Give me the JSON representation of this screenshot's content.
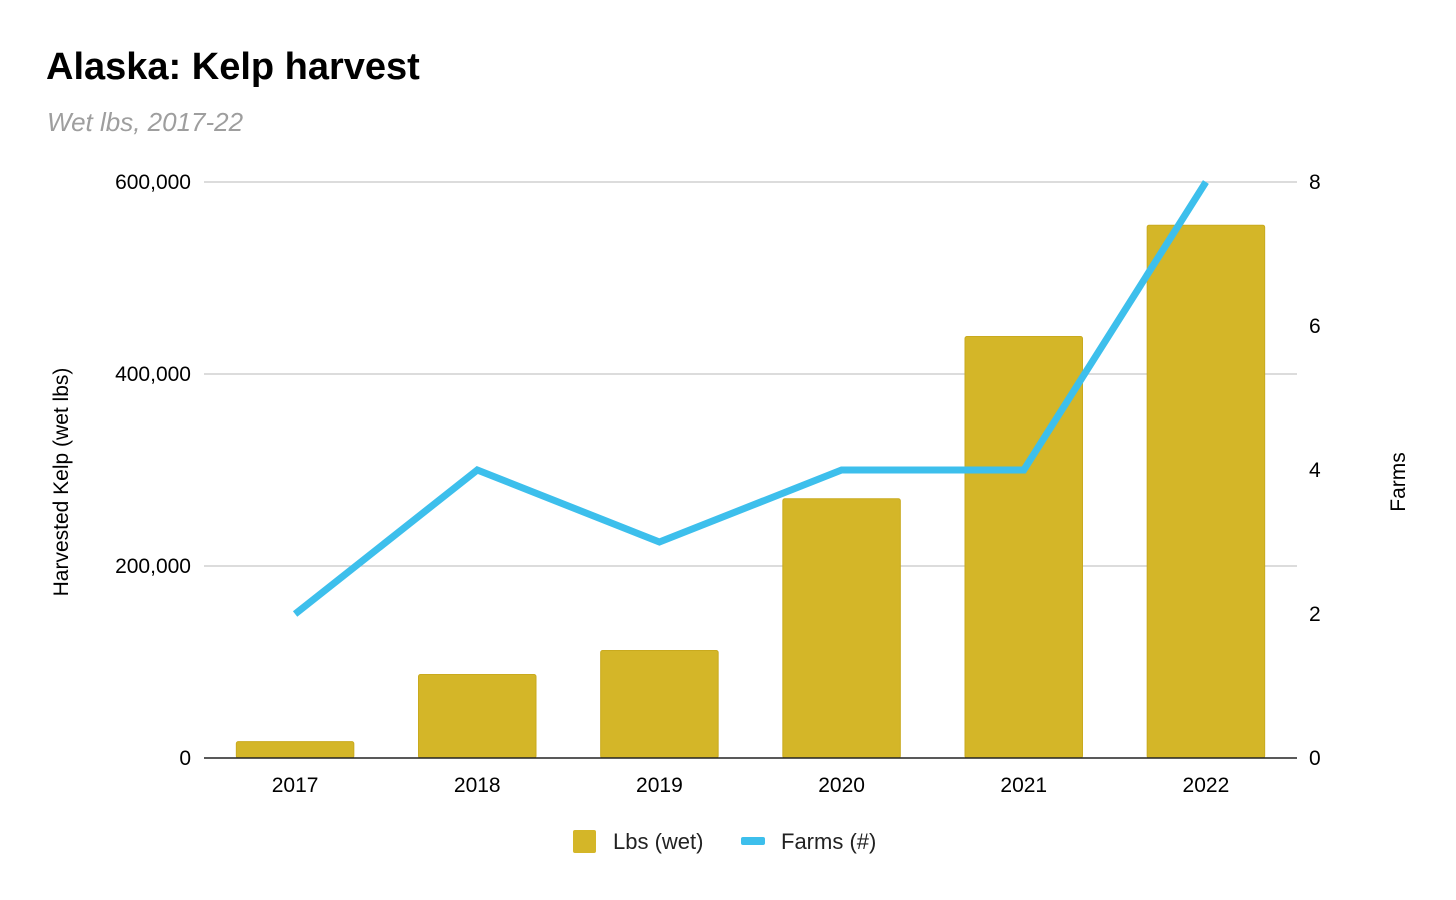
{
  "chart_data": {
    "type": "bar",
    "title": "Alaska: Kelp harvest",
    "subtitle": "Wet lbs, 2017-22",
    "categories": [
      "2017",
      "2018",
      "2019",
      "2020",
      "2021",
      "2022"
    ],
    "series": [
      {
        "name": "Lbs (wet)",
        "type": "bar",
        "axis": "left",
        "color": "#d4b628",
        "values": [
          17000,
          87000,
          112000,
          270000,
          439000,
          555000
        ]
      },
      {
        "name": "Farms (#)",
        "type": "line",
        "axis": "right",
        "color": "#3dbfec",
        "values": [
          2,
          4,
          3,
          4,
          4,
          8
        ]
      }
    ],
    "ylabel": "Harvested Kelp (wet lbs)",
    "y2label": "Farms",
    "ylim": [
      0,
      600000
    ],
    "y2lim": [
      0,
      8
    ],
    "yticks": [
      "0",
      "200,000",
      "400,000",
      "600,000"
    ],
    "y2ticks": [
      "0",
      "2",
      "4",
      "6",
      "8"
    ],
    "grid": true,
    "legend_position": "bottom"
  }
}
